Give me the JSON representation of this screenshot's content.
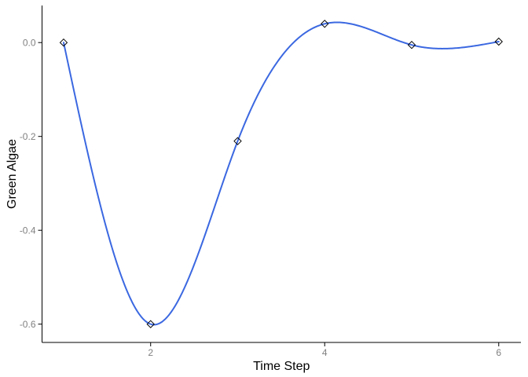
{
  "chart_data": {
    "type": "line",
    "title": "",
    "xlabel": "Time Step",
    "ylabel": "Green Algae",
    "x": [
      1,
      2,
      3,
      4,
      5,
      6
    ],
    "series": [
      {
        "name": "Green Algae",
        "values": [
          0.0,
          -0.6,
          -0.21,
          0.04,
          -0.005,
          0.002
        ]
      }
    ],
    "xticks": [
      2,
      4,
      6
    ],
    "xtick_labels": [
      "2",
      "4",
      "6"
    ],
    "yticks": [
      0.0,
      -0.2,
      -0.4,
      -0.6
    ],
    "ytick_labels": [
      "0.0",
      "-0.2",
      "-0.4",
      "-0.6"
    ],
    "xlim": [
      0.752,
      6.255
    ],
    "ylim": [
      -0.639,
      0.079
    ],
    "grid": false,
    "legend": "none",
    "curve": "spline",
    "marker": "open-diamond",
    "marker_size": 4.5,
    "line_width": 2,
    "colors": {
      "line": "#3B68E1",
      "marker_stroke": "#000000",
      "axis": "#000000",
      "tick_label": "#808080",
      "axis_title": "#000000",
      "background": "#FFFFFF"
    }
  }
}
